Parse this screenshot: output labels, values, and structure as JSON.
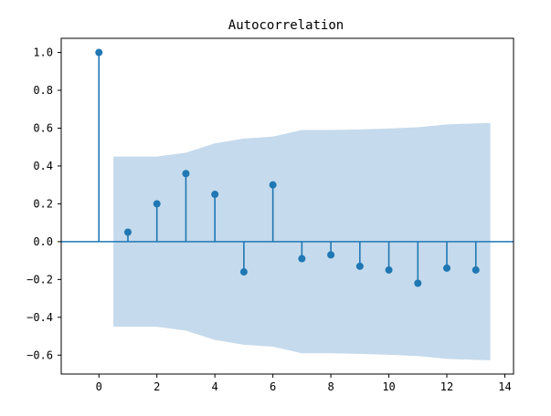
{
  "chart_data": {
    "type": "scatter",
    "title": "Autocorrelation",
    "xlabel": "",
    "ylabel": "",
    "xlim": [
      -1.3,
      14.3
    ],
    "ylim": [
      -0.7,
      1.075
    ],
    "x_ticks": [
      0,
      2,
      4,
      6,
      8,
      10,
      12,
      14
    ],
    "y_ticks": [
      1.0,
      0.8,
      0.6,
      0.4,
      0.2,
      0.0,
      -0.2,
      -0.4,
      -0.6
    ],
    "x_tick_labels": [
      "0",
      "2",
      "4",
      "6",
      "8",
      "10",
      "12",
      "14"
    ],
    "y_tick_labels": [
      "1.0",
      "0.8",
      "0.6",
      "0.4",
      "0.2",
      "0.0",
      "−0.2",
      "−0.4",
      "−0.6"
    ],
    "series": [
      {
        "lags": [
          0,
          1,
          2,
          3,
          4,
          5,
          6,
          7,
          8,
          9,
          10,
          11,
          12,
          13
        ],
        "values": [
          1.0,
          0.05,
          0.2,
          0.36,
          0.25,
          -0.16,
          0.3,
          -0.09,
          -0.07,
          -0.13,
          -0.15,
          -0.22,
          -0.14,
          -0.15
        ]
      }
    ],
    "confidence_band": {
      "x": [
        0.5,
        1,
        2,
        3,
        4,
        5,
        6,
        7,
        8,
        9,
        10,
        11,
        12,
        13,
        13.5
      ],
      "upper": [
        0.45,
        0.45,
        0.45,
        0.47,
        0.52,
        0.545,
        0.555,
        0.59,
        0.59,
        0.593,
        0.598,
        0.605,
        0.62,
        0.625,
        0.627
      ]
    },
    "grid": false,
    "colors": {
      "stem": "#1f77b4",
      "band": "#c5daec",
      "zero_line": "#1f77b4",
      "axis": "#000000"
    }
  }
}
